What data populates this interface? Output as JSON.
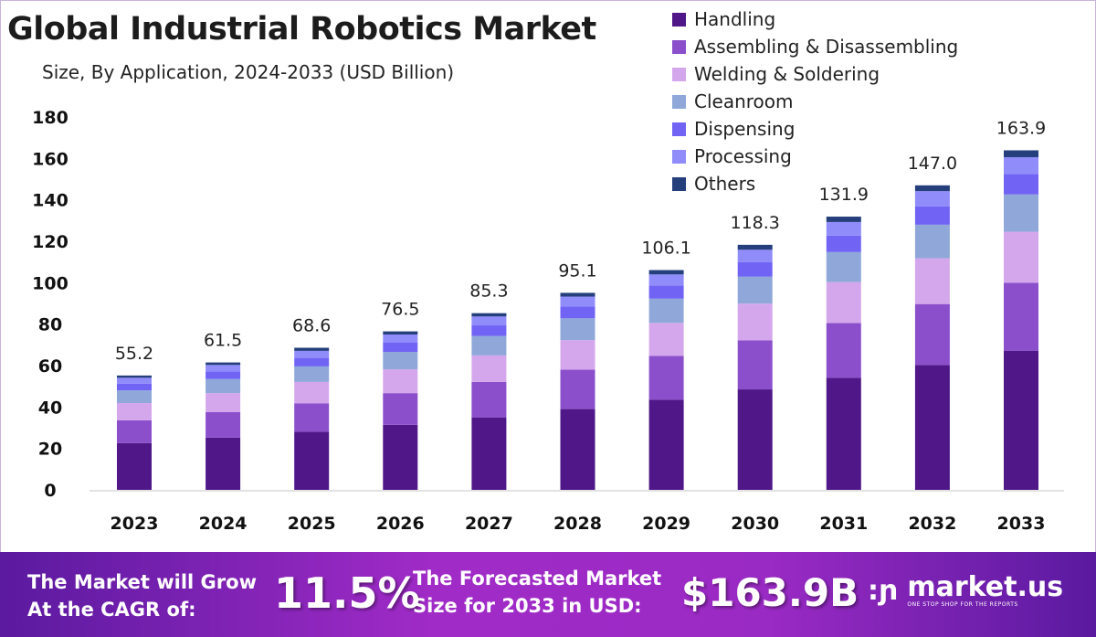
{
  "chart_data": {
    "type": "bar",
    "stacked": true,
    "title": "Global Industrial Robotics Market",
    "subtitle": "Size, By Application, 2024-2033 (USD Billion)",
    "xlabel": "",
    "ylabel": "",
    "ylim": [
      0,
      180
    ],
    "yticks": [
      0,
      20,
      40,
      60,
      80,
      100,
      120,
      140,
      160,
      180
    ],
    "grid": false,
    "legend_position": "top-right",
    "categories": [
      "2023",
      "2024",
      "2025",
      "2026",
      "2027",
      "2028",
      "2029",
      "2030",
      "2031",
      "2032",
      "2033"
    ],
    "totals": [
      "55.2",
      "61.5",
      "68.6",
      "76.5",
      "85.3",
      "95.1",
      "106.1",
      "118.3",
      "131.9",
      "147.0",
      "163.9"
    ],
    "series": [
      {
        "name": "Handling",
        "color": "#4f1787",
        "values": [
          22.6,
          25.2,
          28.1,
          31.4,
          35.0,
          39.0,
          43.5,
          48.5,
          54.1,
          60.3,
          67.2
        ]
      },
      {
        "name": "Assembling & Disassembling",
        "color": "#8b4fcc",
        "values": [
          11.0,
          12.3,
          13.7,
          15.3,
          17.1,
          19.0,
          21.2,
          23.7,
          26.4,
          29.4,
          32.8
        ]
      },
      {
        "name": "Welding & Soldering",
        "color": "#d4a7ec",
        "values": [
          8.3,
          9.2,
          10.3,
          11.5,
          12.8,
          14.3,
          15.9,
          17.7,
          19.8,
          22.1,
          24.6
        ]
      },
      {
        "name": "Cleanroom",
        "color": "#8fa8d9",
        "values": [
          6.1,
          6.8,
          7.5,
          8.4,
          9.4,
          10.5,
          11.7,
          13.0,
          14.5,
          16.2,
          18.0
        ]
      },
      {
        "name": "Dispensing",
        "color": "#7164f5",
        "values": [
          3.3,
          3.7,
          4.1,
          4.6,
          5.1,
          5.7,
          6.4,
          7.1,
          7.9,
          8.8,
          9.8
        ]
      },
      {
        "name": "Processing",
        "color": "#908cfa",
        "values": [
          2.8,
          3.1,
          3.4,
          3.8,
          4.3,
          4.8,
          5.3,
          5.9,
          6.6,
          7.4,
          8.2
        ]
      },
      {
        "name": "Others",
        "color": "#253f7d",
        "values": [
          1.1,
          1.2,
          1.5,
          1.5,
          1.6,
          1.8,
          2.1,
          2.4,
          2.6,
          2.8,
          3.3
        ]
      }
    ]
  },
  "footer": {
    "cagr_label_line1": "The Market will Grow",
    "cagr_label_line2": "At the CAGR of:",
    "cagr_value": "11.5%",
    "forecast_label_line1": "The Forecasted Market",
    "forecast_label_line2": "Size for 2033 in USD:",
    "forecast_value": "$163.9B",
    "logo_text": "market.us",
    "logo_tagline": "ONE STOP SHOP FOR THE REPORTS"
  }
}
